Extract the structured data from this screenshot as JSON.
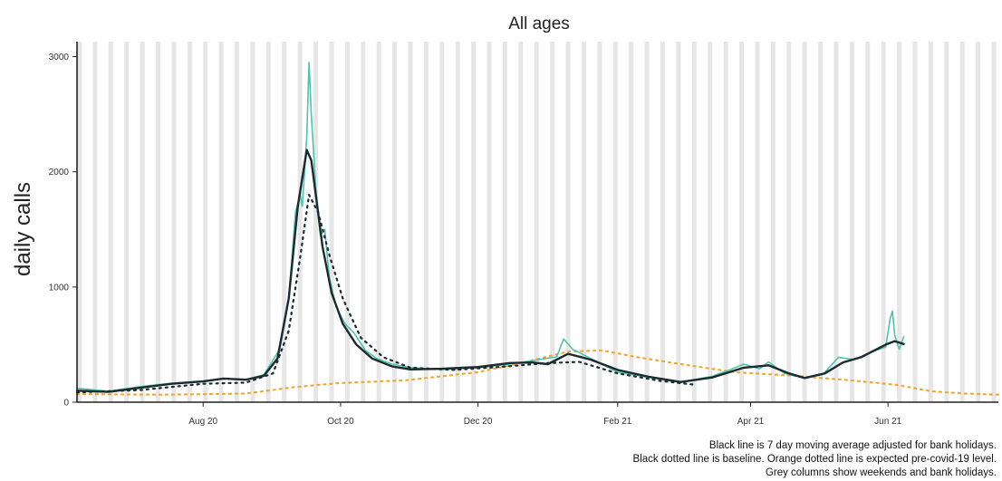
{
  "chart_data": {
    "type": "line",
    "title": "All ages",
    "ylabel": "daily calls",
    "xlabel": "",
    "xlim": [
      "2020-06-06",
      "2021-07-20"
    ],
    "ylim": [
      0,
      3130
    ],
    "x_ticks": [
      {
        "date": "2020-08-01",
        "label": "Aug 20"
      },
      {
        "date": "2020-10-01",
        "label": "Oct 20"
      },
      {
        "date": "2020-12-01",
        "label": "Dec 20"
      },
      {
        "date": "2021-02-01",
        "label": "Feb 21"
      },
      {
        "date": "2021-04-01",
        "label": "Apr 21"
      },
      {
        "date": "2021-06-01",
        "label": "Jun 21"
      }
    ],
    "y_ticks": [
      {
        "value": 0,
        "label": "0"
      },
      {
        "value": 1000,
        "label": "1000"
      },
      {
        "value": 2000,
        "label": "2000"
      },
      {
        "value": 3000,
        "label": "3000"
      }
    ],
    "grid": false,
    "weekend_columns": true,
    "colors": {
      "daily_calls": "#4ec4ad",
      "moving_average": "#1b2b30",
      "baseline": "#1b2b30",
      "expected": "#f0a830",
      "weekend": "#e6e6e6"
    },
    "series": [
      {
        "key": "daily_calls",
        "style": "solid-teal",
        "points": [
          [
            "2020-06-06",
            120
          ],
          [
            "2020-06-20",
            95
          ],
          [
            "2020-07-04",
            135
          ],
          [
            "2020-07-18",
            165
          ],
          [
            "2020-08-01",
            185
          ],
          [
            "2020-08-10",
            205
          ],
          [
            "2020-08-20",
            195
          ],
          [
            "2020-08-28",
            240
          ],
          [
            "2020-09-04",
            460
          ],
          [
            "2020-09-08",
            900
          ],
          [
            "2020-09-11",
            1650
          ],
          [
            "2020-09-13",
            1800
          ],
          [
            "2020-09-14",
            1700
          ],
          [
            "2020-09-16",
            2300
          ],
          [
            "2020-09-17",
            2950
          ],
          [
            "2020-09-18",
            2500
          ],
          [
            "2020-09-20",
            1850
          ],
          [
            "2020-09-22",
            1450
          ],
          [
            "2020-09-24",
            1500
          ],
          [
            "2020-09-26",
            1080
          ],
          [
            "2020-09-29",
            830
          ],
          [
            "2020-10-03",
            680
          ],
          [
            "2020-10-07",
            600
          ],
          [
            "2020-10-12",
            450
          ],
          [
            "2020-10-17",
            380
          ],
          [
            "2020-10-24",
            330
          ],
          [
            "2020-11-01",
            300
          ],
          [
            "2020-11-15",
            285
          ],
          [
            "2020-12-01",
            300
          ],
          [
            "2020-12-15",
            330
          ],
          [
            "2020-12-28",
            370
          ],
          [
            "2021-01-05",
            395
          ],
          [
            "2021-01-08",
            550
          ],
          [
            "2021-01-12",
            460
          ],
          [
            "2021-01-20",
            380
          ],
          [
            "2021-02-01",
            260
          ],
          [
            "2021-02-15",
            215
          ],
          [
            "2021-03-01",
            175
          ],
          [
            "2021-03-15",
            225
          ],
          [
            "2021-03-22",
            275
          ],
          [
            "2021-03-29",
            330
          ],
          [
            "2021-04-05",
            290
          ],
          [
            "2021-04-09",
            350
          ],
          [
            "2021-04-16",
            250
          ],
          [
            "2021-04-25",
            210
          ],
          [
            "2021-05-03",
            240
          ],
          [
            "2021-05-10",
            390
          ],
          [
            "2021-05-17",
            370
          ],
          [
            "2021-05-24",
            430
          ],
          [
            "2021-05-31",
            480
          ],
          [
            "2021-06-02",
            730
          ],
          [
            "2021-06-03",
            790
          ],
          [
            "2021-06-04",
            580
          ],
          [
            "2021-06-06",
            460
          ],
          [
            "2021-06-08",
            570
          ]
        ]
      },
      {
        "key": "moving_average",
        "style": "solid-black",
        "points": [
          [
            "2020-06-06",
            100
          ],
          [
            "2020-06-20",
            90
          ],
          [
            "2020-07-04",
            125
          ],
          [
            "2020-07-18",
            160
          ],
          [
            "2020-08-01",
            180
          ],
          [
            "2020-08-10",
            205
          ],
          [
            "2020-08-20",
            195
          ],
          [
            "2020-08-28",
            230
          ],
          [
            "2020-09-03",
            380
          ],
          [
            "2020-09-08",
            900
          ],
          [
            "2020-09-12",
            1700
          ],
          [
            "2020-09-16",
            2190
          ],
          [
            "2020-09-18",
            2100
          ],
          [
            "2020-09-20",
            1800
          ],
          [
            "2020-09-23",
            1350
          ],
          [
            "2020-09-27",
            950
          ],
          [
            "2020-10-02",
            680
          ],
          [
            "2020-10-08",
            500
          ],
          [
            "2020-10-15",
            380
          ],
          [
            "2020-10-24",
            310
          ],
          [
            "2020-11-01",
            285
          ],
          [
            "2020-11-15",
            290
          ],
          [
            "2020-12-01",
            305
          ],
          [
            "2020-12-15",
            340
          ],
          [
            "2020-12-25",
            345
          ],
          [
            "2021-01-01",
            330
          ],
          [
            "2021-01-10",
            420
          ],
          [
            "2021-01-20",
            370
          ],
          [
            "2021-02-01",
            280
          ],
          [
            "2021-02-15",
            220
          ],
          [
            "2021-03-01",
            175
          ],
          [
            "2021-03-15",
            215
          ],
          [
            "2021-03-29",
            300
          ],
          [
            "2021-04-09",
            320
          ],
          [
            "2021-04-18",
            250
          ],
          [
            "2021-04-25",
            210
          ],
          [
            "2021-05-04",
            250
          ],
          [
            "2021-05-12",
            345
          ],
          [
            "2021-05-20",
            390
          ],
          [
            "2021-05-31",
            500
          ],
          [
            "2021-06-04",
            530
          ],
          [
            "2021-06-08",
            505
          ]
        ]
      },
      {
        "key": "baseline",
        "style": "dotted-black",
        "points": [
          [
            "2020-06-06",
            85
          ],
          [
            "2020-07-04",
            105
          ],
          [
            "2020-08-01",
            160
          ],
          [
            "2020-08-20",
            170
          ],
          [
            "2020-09-01",
            250
          ],
          [
            "2020-09-08",
            620
          ],
          [
            "2020-09-13",
            1250
          ],
          [
            "2020-09-17",
            1800
          ],
          [
            "2020-09-21",
            1650
          ],
          [
            "2020-09-26",
            1280
          ],
          [
            "2020-10-02",
            900
          ],
          [
            "2020-10-10",
            560
          ],
          [
            "2020-10-20",
            390
          ],
          [
            "2020-11-01",
            300
          ],
          [
            "2020-11-20",
            280
          ],
          [
            "2020-12-10",
            305
          ],
          [
            "2021-01-01",
            340
          ],
          [
            "2021-01-15",
            350
          ],
          [
            "2021-02-01",
            250
          ],
          [
            "2021-02-20",
            185
          ],
          [
            "2021-03-08",
            150
          ]
        ]
      },
      {
        "key": "expected",
        "style": "dotted-orange",
        "points": [
          [
            "2020-06-06",
            70
          ],
          [
            "2020-07-15",
            65
          ],
          [
            "2020-08-20",
            75
          ],
          [
            "2020-09-10",
            130
          ],
          [
            "2020-09-30",
            165
          ],
          [
            "2020-10-30",
            190
          ],
          [
            "2020-12-01",
            260
          ],
          [
            "2020-12-20",
            340
          ],
          [
            "2021-01-10",
            440
          ],
          [
            "2021-01-25",
            450
          ],
          [
            "2021-02-10",
            390
          ],
          [
            "2021-03-01",
            330
          ],
          [
            "2021-03-25",
            260
          ],
          [
            "2021-04-20",
            230
          ],
          [
            "2021-05-15",
            190
          ],
          [
            "2021-06-05",
            150
          ],
          [
            "2021-06-20",
            95
          ],
          [
            "2021-07-05",
            75
          ],
          [
            "2021-07-20",
            65
          ]
        ]
      }
    ]
  },
  "caption": {
    "line1": "Black line is 7 day moving average adjusted for bank holidays.",
    "line2": "Black dotted line is baseline. Orange dotted line is expected pre-covid-19 level.",
    "line3": "Grey columns show weekends and bank holidays."
  }
}
